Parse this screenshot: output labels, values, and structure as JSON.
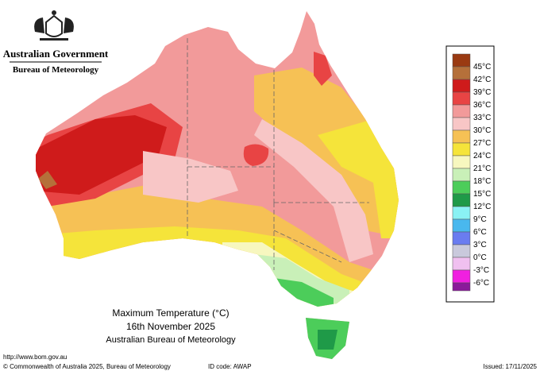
{
  "header": {
    "government": "Australian Government",
    "agency": "Bureau of Meteorology"
  },
  "legend": [
    {
      "label": "45°C",
      "color": "#9a3a12"
    },
    {
      "label": "42°C",
      "color": "#b5703a"
    },
    {
      "label": "39°C",
      "color": "#cf1b1b"
    },
    {
      "label": "36°C",
      "color": "#e84444"
    },
    {
      "label": "33°C",
      "color": "#f29a9a"
    },
    {
      "label": "30°C",
      "color": "#f8c6c6"
    },
    {
      "label": "27°C",
      "color": "#f6c155"
    },
    {
      "label": "24°C",
      "color": "#f5e43a"
    },
    {
      "label": "21°C",
      "color": "#f7f7bf"
    },
    {
      "label": "18°C",
      "color": "#c9f0b8"
    },
    {
      "label": "15°C",
      "color": "#4ccd5a"
    },
    {
      "label": "12°C",
      "color": "#1f9a48"
    },
    {
      "label": "9°C",
      "color": "#8af2f4"
    },
    {
      "label": "6°C",
      "color": "#49b8ee"
    },
    {
      "label": "3°C",
      "color": "#6a7cf0"
    },
    {
      "label": "0°C",
      "color": "#c9c9dc"
    },
    {
      "label": "-3°C",
      "color": "#f0c0f0"
    },
    {
      "label": "-6°C",
      "color": "#f020e0"
    }
  ],
  "legend_end_color": "#8a1a9a",
  "map_title": {
    "line1": "Maximum Temperature (°C)",
    "line2": "16th November 2025",
    "line3": "Australian Bureau of Meteorology"
  },
  "footer": {
    "url": "http://www.bom.gov.au",
    "copyright": "© Commonwealth of Australia 2025, Bureau of Meteorology",
    "id_code": "ID code: AWAP",
    "issued": "Issued: 17/11/2025"
  }
}
